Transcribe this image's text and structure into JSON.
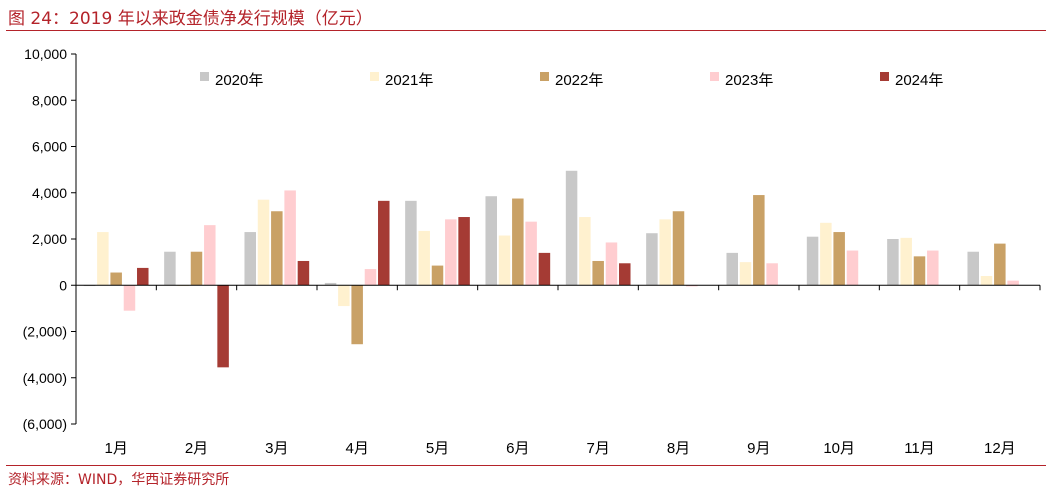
{
  "header": {
    "title": "图 24：2019 年以来政金债净发行规模（亿元）"
  },
  "footer": {
    "source": "资料来源：WIND，华西证券研究所"
  },
  "colors": {
    "accent": "#b4232a",
    "series": [
      "#c8c8c8",
      "#fff1cf",
      "#c9a166",
      "#ffcdd0",
      "#a53b34"
    ]
  },
  "chart_data": {
    "type": "bar",
    "title": "",
    "xlabel": "",
    "ylabel": "",
    "ylim": [
      -6000,
      10000
    ],
    "yticks": [
      10000,
      8000,
      6000,
      4000,
      2000,
      0,
      -2000,
      -4000,
      -6000
    ],
    "ytick_labels": [
      "10,000",
      "8,000",
      "6,000",
      "4,000",
      "2,000",
      "0",
      "(2,000)",
      "(4,000)",
      "(6,000)"
    ],
    "grid": false,
    "legend_position": "top",
    "categories": [
      "1月",
      "2月",
      "3月",
      "4月",
      "5月",
      "6月",
      "7月",
      "8月",
      "9月",
      "10月",
      "11月",
      "12月"
    ],
    "series": [
      {
        "name": "2020年",
        "values": [
          0,
          1450,
          2300,
          100,
          3650,
          3850,
          4950,
          2250,
          1400,
          2100,
          2000,
          1450
        ]
      },
      {
        "name": "2021年",
        "values": [
          2300,
          0,
          3700,
          -900,
          2350,
          2150,
          2950,
          2850,
          1000,
          2700,
          2050,
          400
        ]
      },
      {
        "name": "2022年",
        "values": [
          550,
          1450,
          3200,
          -2550,
          850,
          3750,
          1050,
          3200,
          3900,
          2300,
          1250,
          1800
        ]
      },
      {
        "name": "2023年",
        "values": [
          -1100,
          2600,
          4100,
          700,
          2850,
          2750,
          1850,
          -50,
          950,
          1500,
          1500,
          200
        ]
      },
      {
        "name": "2024年",
        "values": [
          750,
          -3550,
          1050,
          3650,
          2950,
          1400,
          950,
          null,
          null,
          null,
          null,
          null
        ]
      }
    ]
  }
}
